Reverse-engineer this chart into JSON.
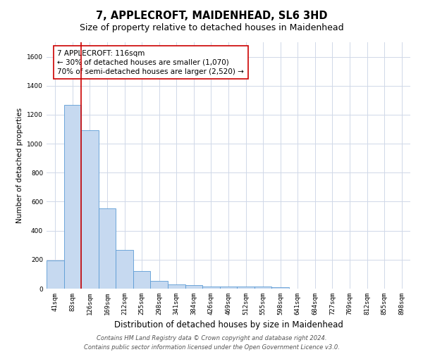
{
  "title": "7, APPLECROFT, MAIDENHEAD, SL6 3HD",
  "subtitle": "Size of property relative to detached houses in Maidenhead",
  "xlabel": "Distribution of detached houses by size in Maidenhead",
  "ylabel": "Number of detached properties",
  "categories": [
    "41sqm",
    "83sqm",
    "126sqm",
    "169sqm",
    "212sqm",
    "255sqm",
    "298sqm",
    "341sqm",
    "384sqm",
    "426sqm",
    "469sqm",
    "512sqm",
    "555sqm",
    "598sqm",
    "641sqm",
    "684sqm",
    "727sqm",
    "769sqm",
    "812sqm",
    "855sqm",
    "898sqm"
  ],
  "values": [
    195,
    1270,
    1095,
    555,
    265,
    120,
    55,
    30,
    22,
    15,
    13,
    13,
    13,
    12,
    0,
    0,
    0,
    0,
    0,
    0,
    0
  ],
  "bar_color": "#c6d9f0",
  "bar_edge_color": "#5b9bd5",
  "grid_color": "#d0d8e8",
  "background_color": "#ffffff",
  "property_line_color": "#cc0000",
  "annotation_text": "7 APPLECROFT: 116sqm\n← 30% of detached houses are smaller (1,070)\n70% of semi-detached houses are larger (2,520) →",
  "annotation_box_color": "#ffffff",
  "annotation_box_edge": "#cc0000",
  "footer_line1": "Contains HM Land Registry data © Crown copyright and database right 2024.",
  "footer_line2": "Contains public sector information licensed under the Open Government Licence v3.0.",
  "ylim": [
    0,
    1700
  ],
  "yticks": [
    0,
    200,
    400,
    600,
    800,
    1000,
    1200,
    1400,
    1600
  ],
  "title_fontsize": 10.5,
  "subtitle_fontsize": 9,
  "xlabel_fontsize": 8.5,
  "ylabel_fontsize": 7.5,
  "tick_fontsize": 6.5,
  "annotation_fontsize": 7.5,
  "footer_fontsize": 6
}
